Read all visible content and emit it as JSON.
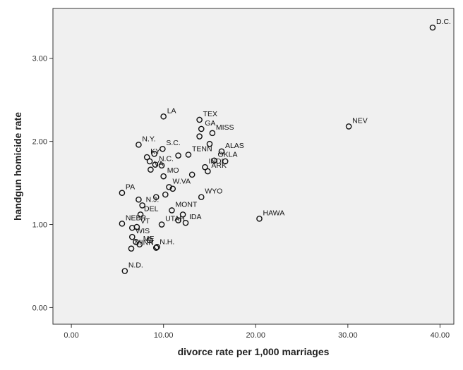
{
  "chart_data": {
    "type": "scatter",
    "xlabel": "divorce rate per 1,000 marriages",
    "ylabel": "handgun homicide rate",
    "xlim": [
      -2.0,
      41.5
    ],
    "ylim": [
      -0.2,
      3.6
    ],
    "xticks": [
      0,
      10,
      20,
      30,
      40
    ],
    "yticks": [
      0,
      1,
      2,
      3
    ],
    "xtick_labels": [
      "0.00",
      "10.00",
      "20.00",
      "30.00",
      "40.00"
    ],
    "ytick_labels": [
      "0.00",
      "1.00",
      "2.00",
      "3.00"
    ],
    "grid": false,
    "legend": "none",
    "colors": {
      "plot_background": "#f0f0f0",
      "marker_stroke": "#111111",
      "axis": "#333333"
    },
    "points": [
      {
        "x": 39.2,
        "y": 3.37,
        "label": "D.C."
      },
      {
        "x": 30.1,
        "y": 2.18,
        "label": "NEV"
      },
      {
        "x": 20.4,
        "y": 1.07,
        "label": "HAWA"
      },
      {
        "x": 10.0,
        "y": 2.3,
        "label": "LA"
      },
      {
        "x": 13.9,
        "y": 2.26,
        "label": "TEX"
      },
      {
        "x": 15.3,
        "y": 2.1,
        "label": "MISS"
      },
      {
        "x": 14.1,
        "y": 2.15,
        "label": "GA"
      },
      {
        "x": 7.3,
        "y": 1.96,
        "label": "N.Y."
      },
      {
        "x": 9.9,
        "y": 1.91,
        "label": "S.C."
      },
      {
        "x": 16.3,
        "y": 1.88,
        "label": "ALAS"
      },
      {
        "x": 12.7,
        "y": 1.84,
        "label": "TENN"
      },
      {
        "x": 15.5,
        "y": 1.77,
        "label": "OKLA"
      },
      {
        "x": 8.2,
        "y": 1.81,
        "label": "KY"
      },
      {
        "x": 14.5,
        "y": 1.69,
        "label": "INDI"
      },
      {
        "x": 9.1,
        "y": 1.72,
        "label": "N.C."
      },
      {
        "x": 8.6,
        "y": 1.66,
        "label": "VA"
      },
      {
        "x": 14.8,
        "y": 1.64,
        "label": "ARK"
      },
      {
        "x": 10.0,
        "y": 1.58,
        "label": "MO"
      },
      {
        "x": 5.5,
        "y": 1.38,
        "label": "PA"
      },
      {
        "x": 10.6,
        "y": 1.45,
        "label": "W.VA"
      },
      {
        "x": 14.1,
        "y": 1.33,
        "label": "WYO"
      },
      {
        "x": 10.9,
        "y": 1.17,
        "label": "MONT"
      },
      {
        "x": 7.7,
        "y": 1.23,
        "label": "N.J."
      },
      {
        "x": 7.5,
        "y": 1.12,
        "label": "DEL"
      },
      {
        "x": 5.5,
        "y": 1.01,
        "label": "NEBR"
      },
      {
        "x": 12.4,
        "y": 1.02,
        "label": "IDA"
      },
      {
        "x": 9.8,
        "y": 1.0,
        "label": "UTAH"
      },
      {
        "x": 7.1,
        "y": 0.97,
        "label": "VT"
      },
      {
        "x": 6.6,
        "y": 0.85,
        "label": "WIS"
      },
      {
        "x": 6.5,
        "y": 0.71,
        "label": "MINN"
      },
      {
        "x": 9.2,
        "y": 0.72,
        "label": "N.H."
      },
      {
        "x": 7.4,
        "y": 0.76,
        "label": "ME"
      },
      {
        "x": 5.8,
        "y": 0.44,
        "label": "N.D."
      },
      {
        "x": 15.0,
        "y": 1.97,
        "label": ""
      },
      {
        "x": 13.9,
        "y": 2.06,
        "label": ""
      },
      {
        "x": 9.0,
        "y": 1.85,
        "label": ""
      },
      {
        "x": 11.6,
        "y": 1.83,
        "label": ""
      },
      {
        "x": 8.5,
        "y": 1.76,
        "label": ""
      },
      {
        "x": 9.8,
        "y": 1.71,
        "label": ""
      },
      {
        "x": 16.7,
        "y": 1.76,
        "label": ""
      },
      {
        "x": 13.1,
        "y": 1.6,
        "label": ""
      },
      {
        "x": 11.0,
        "y": 1.43,
        "label": ""
      },
      {
        "x": 10.2,
        "y": 1.36,
        "label": ""
      },
      {
        "x": 9.2,
        "y": 1.33,
        "label": ""
      },
      {
        "x": 7.3,
        "y": 1.3,
        "label": ""
      },
      {
        "x": 12.1,
        "y": 1.12,
        "label": ""
      },
      {
        "x": 11.6,
        "y": 1.05,
        "label": ""
      },
      {
        "x": 6.6,
        "y": 0.96,
        "label": ""
      },
      {
        "x": 8.5,
        "y": 0.81,
        "label": ""
      },
      {
        "x": 7.0,
        "y": 0.79,
        "label": ""
      },
      {
        "x": 9.3,
        "y": 0.73,
        "label": ""
      }
    ]
  }
}
